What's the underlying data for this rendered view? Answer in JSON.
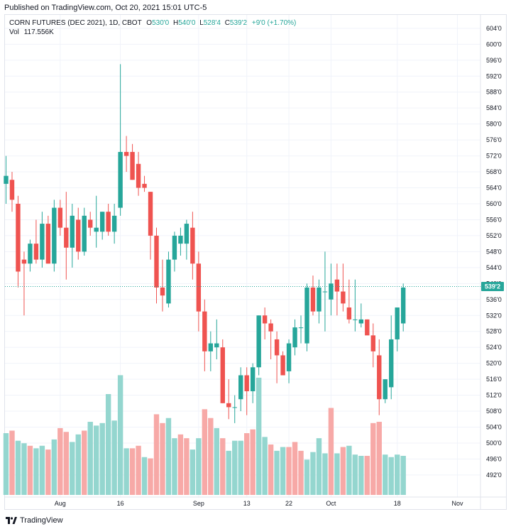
{
  "header": {
    "published": "Published on TradingView.com, Oct 20, 2021 15:01 UTC-5"
  },
  "legend": {
    "symbol": "CORN FUTURES (DEC 2021), 1D, CBOT",
    "o_label": "O",
    "o_value": "530'0",
    "h_label": "H",
    "h_value": "540'0",
    "l_label": "L",
    "l_value": "528'4",
    "c_label": "C",
    "c_value": "539'2",
    "change": "+9'0 (+1.70%)",
    "vol_label": "Vol",
    "vol_value": "117.556K"
  },
  "footer": {
    "brand": "TradingView",
    "logo_icon": "tradingview-logo-icon"
  },
  "colors": {
    "up": "#26a69a",
    "down": "#ef5350",
    "up_vol": "#94d6cf",
    "down_vol": "#f7a9a7",
    "grid": "#f0f3fa"
  },
  "chart_data": {
    "type": "candlestick",
    "title": "CORN FUTURES (DEC 2021), 1D, CBOT",
    "y_ticks": [
      "604'0",
      "600'0",
      "596'0",
      "592'0",
      "588'0",
      "584'0",
      "580'0",
      "576'0",
      "572'0",
      "568'0",
      "564'0",
      "560'0",
      "556'0",
      "552'0",
      "548'0",
      "544'0",
      "540'0",
      "536'0",
      "532'0",
      "528'0",
      "524'0",
      "520'0",
      "516'0",
      "512'0",
      "508'0",
      "504'0",
      "500'0",
      "496'0",
      "492'0"
    ],
    "x_ticks": [
      {
        "label": "Aug",
        "index": 9
      },
      {
        "label": "16",
        "index": 19
      },
      {
        "label": "Sep",
        "index": 32
      },
      {
        "label": "13",
        "index": 40
      },
      {
        "label": "22",
        "index": 47
      },
      {
        "label": "Oct",
        "index": 54
      },
      {
        "label": "18",
        "index": 65
      },
      {
        "label": "Nov",
        "index": 75
      }
    ],
    "ylim": [
      487,
      607
    ],
    "last_price_label": "539'2",
    "last_price": 539.25,
    "ohlc": [
      [
        565,
        572,
        560,
        567
      ],
      [
        566,
        568,
        558,
        561
      ],
      [
        560,
        562,
        539,
        543
      ],
      [
        546,
        548,
        532,
        545
      ],
      [
        545,
        551,
        543,
        550
      ],
      [
        550,
        556,
        545,
        546
      ],
      [
        546,
        558,
        544,
        555
      ],
      [
        555,
        557,
        545,
        545
      ],
      [
        545,
        561,
        543,
        559
      ],
      [
        559,
        561,
        552,
        554
      ],
      [
        554,
        563,
        541,
        549
      ],
      [
        549,
        560,
        544,
        557
      ],
      [
        556,
        559,
        546,
        548
      ],
      [
        548,
        559,
        547,
        557
      ],
      [
        556,
        558,
        552,
        554
      ],
      [
        553,
        562,
        549,
        554
      ],
      [
        553,
        558,
        551,
        558
      ],
      [
        558,
        560,
        552,
        553
      ],
      [
        553,
        560,
        550,
        557
      ],
      [
        559,
        595,
        557,
        573
      ],
      [
        573,
        577,
        568,
        572
      ],
      [
        573,
        575,
        566,
        566
      ],
      [
        570,
        573,
        562,
        564
      ],
      [
        565,
        567,
        563,
        564
      ],
      [
        563,
        563,
        546,
        552
      ],
      [
        552,
        554,
        535,
        539
      ],
      [
        539,
        546,
        533,
        537
      ],
      [
        535,
        548,
        534,
        546
      ],
      [
        546,
        553,
        543,
        552
      ],
      [
        550,
        554,
        547,
        552
      ],
      [
        550,
        556,
        546,
        555
      ],
      [
        554,
        558,
        541,
        545
      ],
      [
        545,
        548,
        528,
        533
      ],
      [
        533,
        536,
        518,
        523
      ],
      [
        523,
        528,
        518,
        525
      ],
      [
        524,
        531,
        521,
        525
      ],
      [
        524,
        526,
        510,
        510
      ],
      [
        510,
        516,
        506,
        509
      ],
      [
        509,
        512,
        505,
        509
      ],
      [
        511,
        519,
        508,
        517
      ],
      [
        517,
        519,
        507,
        513
      ],
      [
        513,
        520,
        510,
        519
      ],
      [
        519,
        532,
        517,
        532
      ],
      [
        532,
        534,
        526,
        530
      ],
      [
        530,
        531,
        521,
        528
      ],
      [
        526,
        528,
        515,
        522
      ],
      [
        522,
        523,
        517,
        517
      ],
      [
        518,
        526,
        515,
        525
      ],
      [
        524,
        531,
        522,
        529
      ],
      [
        529,
        532,
        525,
        529
      ],
      [
        525,
        540,
        523,
        539
      ],
      [
        539,
        542,
        532,
        533
      ],
      [
        533,
        541,
        530,
        539
      ],
      [
        538,
        548,
        528,
        538
      ],
      [
        536,
        545,
        532,
        540
      ],
      [
        541,
        545,
        532,
        538
      ],
      [
        538,
        545,
        533,
        535
      ],
      [
        534,
        541,
        530,
        531
      ],
      [
        531,
        541,
        528,
        531
      ],
      [
        530,
        535,
        529,
        531
      ],
      [
        531,
        531,
        528,
        527
      ],
      [
        527,
        530,
        519,
        523
      ],
      [
        522,
        526,
        507,
        511
      ],
      [
        511,
        516,
        510,
        516
      ],
      [
        514,
        532,
        511,
        526
      ],
      [
        526,
        533,
        523,
        534
      ],
      [
        530,
        540,
        528,
        539
      ]
    ],
    "volume": [
      [
        24.5,
        "up"
      ],
      [
        25.5,
        "down"
      ],
      [
        21.5,
        "up"
      ],
      [
        20.5,
        "up"
      ],
      [
        19.5,
        "down"
      ],
      [
        18.5,
        "up"
      ],
      [
        19.5,
        "up"
      ],
      [
        18.0,
        "down"
      ],
      [
        22.0,
        "up"
      ],
      [
        26.5,
        "down"
      ],
      [
        25.0,
        "down"
      ],
      [
        21.0,
        "up"
      ],
      [
        24.0,
        "up"
      ],
      [
        25.5,
        "down"
      ],
      [
        29.0,
        "up"
      ],
      [
        27.5,
        "up"
      ],
      [
        28.5,
        "up"
      ],
      [
        40.0,
        "up"
      ],
      [
        29.5,
        "up"
      ],
      [
        47.5,
        "up"
      ],
      [
        18.5,
        "up"
      ],
      [
        18.5,
        "down"
      ],
      [
        19.5,
        "down"
      ],
      [
        15.0,
        "up"
      ],
      [
        14.5,
        "down"
      ],
      [
        32.0,
        "down"
      ],
      [
        28.5,
        "down"
      ],
      [
        30.5,
        "up"
      ],
      [
        22.5,
        "up"
      ],
      [
        24.0,
        "down"
      ],
      [
        22.5,
        "down"
      ],
      [
        18.0,
        "up"
      ],
      [
        22.5,
        "up"
      ],
      [
        34.0,
        "down"
      ],
      [
        30.5,
        "down"
      ],
      [
        26.5,
        "up"
      ],
      [
        22.5,
        "down"
      ],
      [
        17.5,
        "up"
      ],
      [
        21.5,
        "up"
      ],
      [
        21.5,
        "up"
      ],
      [
        24.5,
        "down"
      ],
      [
        26.0,
        "down"
      ],
      [
        46.5,
        "up"
      ],
      [
        23.0,
        "up"
      ],
      [
        20.0,
        "down"
      ],
      [
        17.5,
        "up"
      ],
      [
        19.0,
        "up"
      ],
      [
        19.0,
        "down"
      ],
      [
        21.0,
        "down"
      ],
      [
        17.5,
        "down"
      ],
      [
        14.0,
        "up"
      ],
      [
        17.0,
        "up"
      ],
      [
        22.5,
        "up"
      ],
      [
        16.5,
        "up"
      ],
      [
        34.5,
        "down"
      ],
      [
        16.5,
        "up"
      ],
      [
        19.0,
        "down"
      ],
      [
        19.5,
        "up"
      ],
      [
        16.0,
        "up"
      ],
      [
        15.5,
        "up"
      ],
      [
        15.5,
        "down"
      ],
      [
        28.5,
        "down"
      ],
      [
        29.0,
        "down"
      ],
      [
        16.0,
        "up"
      ],
      [
        15.0,
        "up"
      ],
      [
        16.0,
        "up"
      ],
      [
        15.5,
        "up"
      ]
    ]
  }
}
